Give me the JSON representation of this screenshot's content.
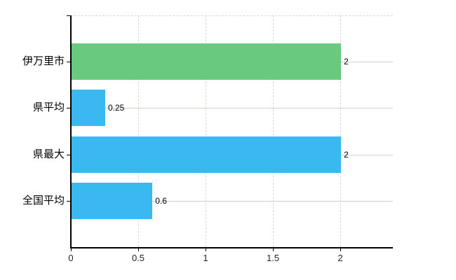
{
  "chart_data": {
    "type": "bar",
    "orientation": "horizontal",
    "title": "",
    "categories": [
      "伊万里市",
      "県平均",
      "県最大",
      "全国平均"
    ],
    "values": [
      2,
      0.25,
      2,
      0.6
    ],
    "value_labels": [
      "2",
      "0.25",
      "2",
      "0.6"
    ],
    "bar_colors": [
      "#69c97e",
      "#39b9f0",
      "#39b9f0",
      "#39b9f0"
    ],
    "x_ticks": [
      0,
      0.5,
      1,
      1.5,
      2
    ],
    "x_tick_labels": [
      "0",
      "0.5",
      "1",
      "1.5",
      "2"
    ],
    "xlim": [
      0,
      2.39
    ],
    "xlabel": "",
    "ylabel": "",
    "grid": true,
    "legend": null
  },
  "colors": {
    "background": "#ffffff",
    "axis": "#000000",
    "grid_vertical": "#d8d8d8",
    "grid_horizontal": "#ccd4cc",
    "green_bar": "#69c97e",
    "blue_bar": "#39b9f0",
    "text": "#000000"
  }
}
